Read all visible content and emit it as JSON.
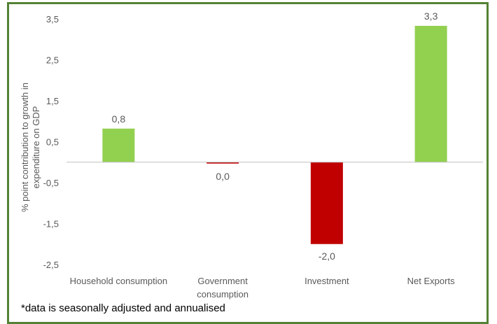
{
  "chart_data": {
    "type": "bar",
    "title": "",
    "xlabel": "",
    "ylabel": "% point contribution to growth in expenditure on GDP",
    "categories": [
      "Household consumption",
      "Government consumption",
      "Investment",
      "Net Exports"
    ],
    "values": [
      0.82,
      -0.02,
      -2.0,
      3.33
    ],
    "data_labels": [
      "0,8",
      "0,0",
      "-2,0",
      "3,3"
    ],
    "y_ticks": [
      3.5,
      2.5,
      1.5,
      0.5,
      -0.5,
      -1.5,
      -2.5
    ],
    "y_tick_labels": [
      "3,5",
      "2,5",
      "1,5",
      "0,5",
      "-0,5",
      "-1,5",
      "-2,5"
    ],
    "ylim": [
      -2.5,
      3.5
    ],
    "grid": false,
    "colors": {
      "positive": "#92d050",
      "negative": "#c00000",
      "axis": "#bfbfbf",
      "border": "#548235",
      "text": "#595959"
    }
  },
  "footnote": "*data is seasonally adjusted and annualised"
}
